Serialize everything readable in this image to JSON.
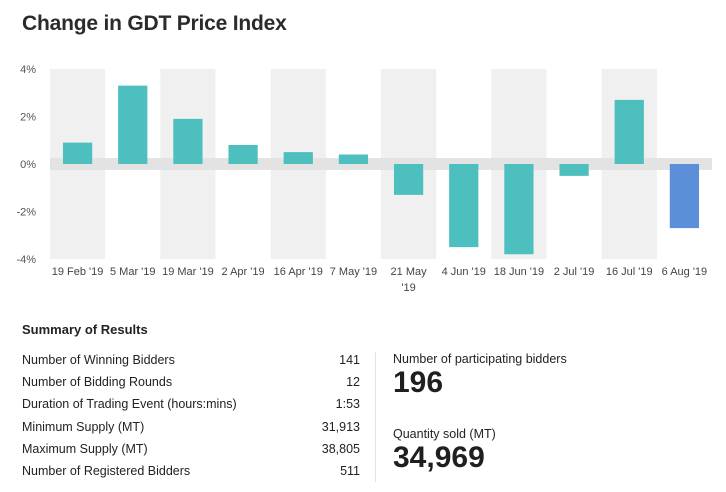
{
  "title": "Change in GDT Price Index",
  "chart_data": {
    "type": "bar",
    "title": "Change in GDT Price Index",
    "categories": [
      "19 Feb '19",
      "5 Mar '19",
      "19 Mar '19",
      "2 Apr '19",
      "16 Apr '19",
      "7 May '19",
      "21 May '19",
      "4 Jun '19",
      "18 Jun '19",
      "2 Jul '19",
      "16 Jul '19",
      "6 Aug '19"
    ],
    "category_lines": [
      [
        "19 Feb '19"
      ],
      [
        "5 Mar '19"
      ],
      [
        "19 Mar '19"
      ],
      [
        "2 Apr '19"
      ],
      [
        "16 Apr '19"
      ],
      [
        "7 May '19"
      ],
      [
        "21 May",
        "'19"
      ],
      [
        "4 Jun '19"
      ],
      [
        "18 Jun '19"
      ],
      [
        "2 Jul '19"
      ],
      [
        "16 Jul '19"
      ],
      [
        "6 Aug '19"
      ]
    ],
    "values": [
      0.9,
      3.3,
      1.9,
      0.8,
      0.5,
      0.4,
      -1.3,
      -3.5,
      -3.8,
      -0.5,
      2.7,
      -2.7
    ],
    "ylim": [
      -4,
      4
    ],
    "yticks": [
      4,
      2,
      0,
      -2,
      -4
    ],
    "ytick_labels": [
      "4%",
      "2%",
      "0%",
      "-2%",
      "-4%"
    ],
    "xlabel": "",
    "ylabel": "",
    "grid": false,
    "colors": {
      "bar": "#4dbfbf",
      "highlight": "#5b8fd9",
      "band": "#f0f0f0",
      "zero_band": "#e3e3e3"
    },
    "highlight_index": 11
  },
  "summary": {
    "title": "Summary of Results",
    "rows": [
      {
        "label": "Number of Winning Bidders",
        "value": "141"
      },
      {
        "label": "Number of Bidding Rounds",
        "value": "12"
      },
      {
        "label": "Duration of Trading Event (hours:mins)",
        "value": "1:53"
      },
      {
        "label": "Minimum Supply (MT)",
        "value": "31,913"
      },
      {
        "label": "Maximum Supply (MT)",
        "value": "38,805"
      },
      {
        "label": "Number of Registered Bidders",
        "value": "511"
      }
    ],
    "participating_label": "Number of participating bidders",
    "participating_value": "196",
    "quantity_label": "Quantity sold (MT)",
    "quantity_value": "34,969"
  }
}
